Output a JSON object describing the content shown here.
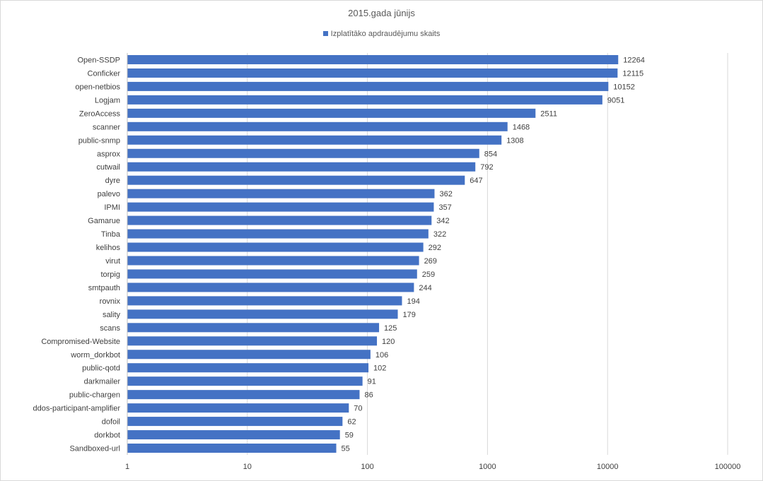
{
  "chart_data": {
    "type": "bar",
    "orientation": "horizontal",
    "title": "2015.gada jūnijs",
    "legend_position": "top",
    "x_scale": "log",
    "xlim": [
      1,
      100000
    ],
    "x_ticks": [
      "1",
      "10",
      "100",
      "1000",
      "10000",
      "100000"
    ],
    "grid": true,
    "series": [
      {
        "name": "Izplatītāko apdraudējumu skaits",
        "color": "#4472c4",
        "values": [
          12264,
          12115,
          10152,
          9051,
          2511,
          1468,
          1308,
          854,
          792,
          647,
          362,
          357,
          342,
          322,
          292,
          269,
          259,
          244,
          194,
          179,
          125,
          120,
          106,
          102,
          91,
          86,
          70,
          62,
          59,
          55
        ]
      }
    ],
    "categories": [
      "Open-SSDP",
      "Conficker",
      "open-netbios",
      "Logjam",
      "ZeroAccess",
      "scanner",
      "public-snmp",
      "asprox",
      "cutwail",
      "dyre",
      "palevo",
      "IPMI",
      "Gamarue",
      "Tinba",
      "kelihos",
      "virut",
      "torpig",
      "smtpauth",
      "rovnix",
      "sality",
      "scans",
      "Compromised-Website",
      "worm_dorkbot",
      "public-qotd",
      "darkmailer",
      "public-chargen",
      "ddos-participant-amplifier",
      "dofoil",
      "dorkbot",
      "Sandboxed-url"
    ]
  }
}
